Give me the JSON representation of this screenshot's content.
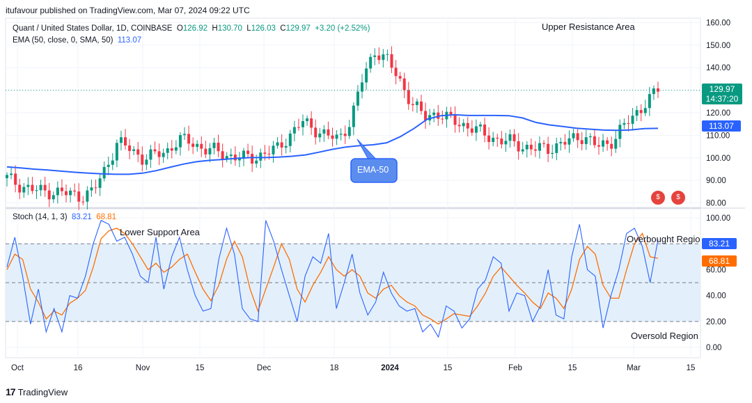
{
  "header": {
    "published": "itufavour published on TradingView.com, Mar 07, 2024 09:22 UTC"
  },
  "footer": {
    "brand": "TradingView",
    "logo_glyph": "17"
  },
  "price_legend": {
    "symbol": "Quant / United States Dollar, 1D, COINBASE",
    "open_label": "O",
    "open": "126.92",
    "high_label": "H",
    "high": "130.70",
    "low_label": "L",
    "low": "126.03",
    "close_label": "C",
    "close": "129.97",
    "change": "+3.20 (+2.52%)"
  },
  "ema_legend": {
    "label": "EMA (50, close, 0, SMA, 50)",
    "value": "113.07"
  },
  "stoch_legend": {
    "label": "Stoch (14, 1, 3)",
    "k": "83.21",
    "d": "68.81"
  },
  "annotations": {
    "upper_resistance": "Upper Resistance Area",
    "lower_support": "Lower Support Area",
    "overbought": "Overbought Region",
    "oversold": "Oversold Region",
    "ema_callout": "EMA-50"
  },
  "badges": {
    "last_price": "129.97",
    "countdown": "14:37:20",
    "ema_value": "113.07",
    "stoch_k": "83.21",
    "stoch_d": "68.81"
  },
  "colors": {
    "up": "#089981",
    "down": "#f23645",
    "ema": "#2962ff",
    "stoch_k": "#2962ff",
    "stoch_d": "#ff6d00",
    "band": "#e3f0fb"
  },
  "chart_data": [
    {
      "type": "candlestick",
      "title": "Quant / United States Dollar, 1D, COINBASE",
      "ylim": [
        78,
        162
      ],
      "y_ticks": [
        "160.00",
        "150.00",
        "140.00",
        "130.00",
        "120.00",
        "110.00",
        "100.00",
        "90.00",
        "80.00"
      ],
      "x_ticks": [
        "Oct",
        "16",
        "Nov",
        "15",
        "Dec",
        "18",
        "2024",
        "15",
        "Feb",
        "15",
        "Mar",
        "15"
      ],
      "last_price": 129.97,
      "series": [
        {
          "name": "EMA (50, close, 0, SMA, 50)",
          "type": "line",
          "values": [
            96,
            95.5,
            95,
            94.6,
            94.1,
            93.6,
            93.2,
            92.9,
            92.7,
            92.7,
            93.2,
            94.3,
            95.8,
            97.2,
            98.3,
            98.9,
            99.3,
            99.8,
            100.1,
            100.1,
            100.3,
            100.7,
            101.3,
            102.5,
            103.8,
            104.8,
            105.4,
            105.8,
            106.7,
            109.4,
            113,
            117.2,
            118.7,
            119.1,
            118.8,
            118.8,
            118.8,
            118.7,
            117.7,
            115.7,
            114.6,
            113.9,
            113.1,
            112.7,
            112.3,
            112.2,
            112.4,
            113,
            113.07
          ]
        }
      ],
      "ohlc_close_samples": [
        91,
        88,
        86,
        85,
        85,
        84,
        83,
        85,
        95,
        107,
        104,
        100,
        101,
        103,
        108,
        107,
        104,
        103,
        101,
        100,
        100,
        102,
        104,
        110,
        116,
        113,
        110,
        108,
        117,
        136,
        148,
        143,
        134,
        124,
        118,
        120,
        117,
        115,
        113,
        110,
        108,
        107,
        105,
        104,
        104,
        106,
        108,
        110,
        105,
        106,
        113,
        118,
        125,
        129.97
      ]
    },
    {
      "type": "line",
      "title": "Stoch (14, 1, 3)",
      "ylim": [
        -8,
        107
      ],
      "y_ticks": [
        "100.00",
        "80.00",
        "60.00",
        "40.00",
        "20.00",
        "0.00"
      ],
      "bands": {
        "upper": 80,
        "middle": 50,
        "lower": 20
      },
      "series": [
        {
          "name": "%K",
          "values": [
            62,
            85,
            55,
            18,
            45,
            12,
            30,
            12,
            40,
            38,
            55,
            80,
            98,
            95,
            82,
            85,
            72,
            55,
            50,
            85,
            45,
            70,
            85,
            60,
            40,
            28,
            30,
            68,
            92,
            72,
            30,
            22,
            20,
            98,
            82,
            60,
            40,
            20,
            55,
            70,
            65,
            88,
            30,
            50,
            72,
            42,
            25,
            35,
            58,
            42,
            32,
            28,
            30,
            12,
            18,
            8,
            32,
            28,
            15,
            22,
            45,
            52,
            70,
            65,
            28,
            42,
            40,
            20,
            32,
            60,
            25,
            22,
            70,
            95,
            60,
            55,
            15,
            40,
            60,
            88,
            92,
            78,
            50,
            83.21
          ]
        },
        {
          "name": "%D",
          "values": [
            60,
            72,
            68,
            45,
            35,
            22,
            28,
            25,
            34,
            38,
            44,
            62,
            84,
            90,
            92,
            88,
            80,
            70,
            60,
            65,
            58,
            62,
            68,
            72,
            58,
            45,
            36,
            48,
            68,
            82,
            70,
            45,
            28,
            45,
            62,
            80,
            68,
            45,
            35,
            48,
            58,
            70,
            60,
            55,
            60,
            55,
            42,
            38,
            45,
            48,
            40,
            35,
            32,
            25,
            22,
            18,
            22,
            26,
            25,
            24,
            32,
            42,
            55,
            62,
            55,
            48,
            42,
            35,
            30,
            42,
            38,
            30,
            45,
            68,
            78,
            72,
            48,
            38,
            38,
            60,
            80,
            88,
            70,
            68.81
          ]
        }
      ]
    }
  ]
}
